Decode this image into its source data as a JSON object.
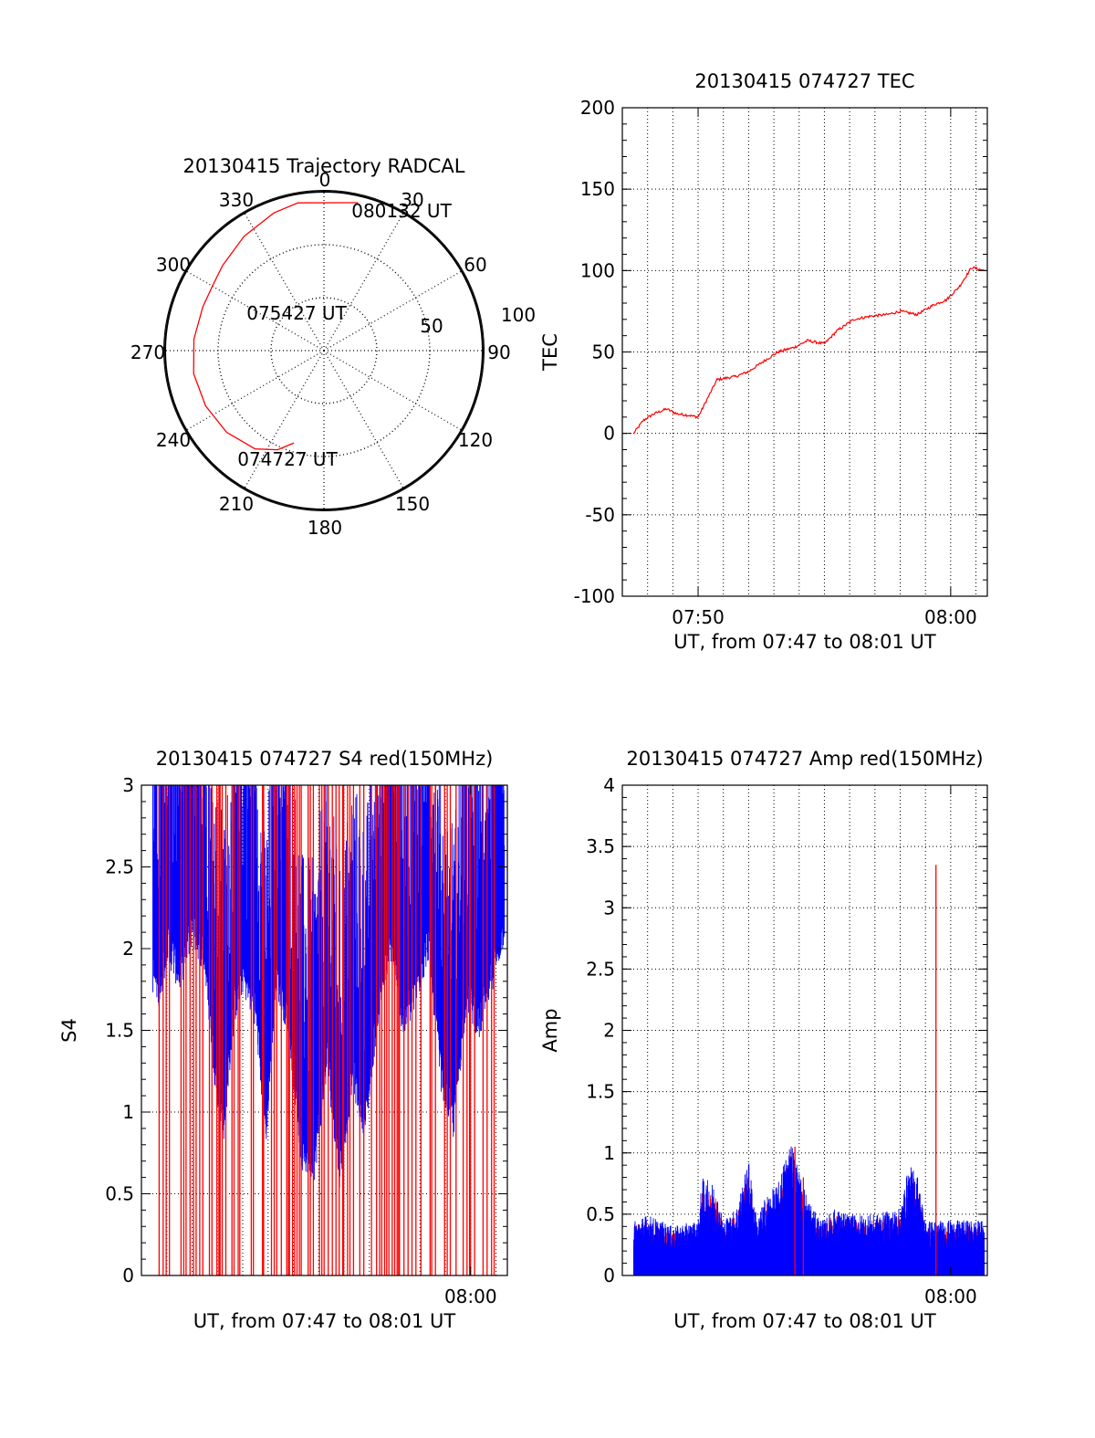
{
  "chart_data": [
    {
      "type": "polar",
      "title": "20130415 Trajectory RADCAL",
      "angle_labels": [
        "0",
        "30",
        "60",
        "90",
        "120",
        "150",
        "180",
        "210",
        "240",
        "270",
        "300",
        "330"
      ],
      "radial_labels": [
        "50",
        "100"
      ],
      "rlim": [
        0,
        100
      ],
      "grid": true,
      "series": [
        {
          "color": "#ff0000",
          "points": [
            {
              "az": 198,
              "el": 35
            },
            {
              "az": 205,
              "el": 28
            },
            {
              "az": 215,
              "el": 22
            },
            {
              "az": 230,
              "el": 18
            },
            {
              "az": 245,
              "el": 16
            },
            {
              "az": 260,
              "el": 15
            },
            {
              "az": 275,
              "el": 16
            },
            {
              "az": 290,
              "el": 17
            },
            {
              "az": 300,
              "el": 17
            },
            {
              "az": 310,
              "el": 15
            },
            {
              "az": 325,
              "el": 11
            },
            {
              "az": 340,
              "el": 7
            },
            {
              "az": 350,
              "el": 5
            },
            {
              "az": 13,
              "el": 4
            }
          ]
        }
      ],
      "annotations": [
        {
          "text": "074727 UT",
          "az": 205,
          "el": 28
        },
        {
          "text": "075427 UT",
          "az": 300,
          "el": 56
        },
        {
          "text": "080132 UT",
          "az": 20,
          "el": 9
        }
      ]
    },
    {
      "type": "line",
      "title": "20130415 074727 TEC",
      "xlabel": "UT, from 07:47 to 08:01 UT",
      "ylabel": "TEC",
      "xlim": [
        "07:47:00",
        "08:01:27"
      ],
      "ylim": [
        -100,
        200
      ],
      "yticks": [
        -100,
        -50,
        0,
        50,
        100,
        150,
        200
      ],
      "xticks": [
        {
          "at": "07:50",
          "label": "07:50"
        },
        {
          "at": "08:00",
          "label": "08:00"
        }
      ],
      "grid": true,
      "series": [
        {
          "color": "#ff0000",
          "x": [
            "07:47:27",
            "07:47:50",
            "07:48:15",
            "07:48:45",
            "07:49:10",
            "07:49:40",
            "07:50:00",
            "07:50:45",
            "07:51:30",
            "07:52:00",
            "07:52:40",
            "07:53:10",
            "07:53:50",
            "07:54:20",
            "07:55:00",
            "07:55:30",
            "07:56:10",
            "07:56:50",
            "07:57:30",
            "07:58:00",
            "07:58:40",
            "07:59:20",
            "07:59:50",
            "08:00:20",
            "08:00:50",
            "08:01:20"
          ],
          "y": [
            0,
            8,
            12,
            15,
            12,
            11,
            10,
            33,
            35,
            38,
            45,
            50,
            53,
            57,
            55,
            63,
            70,
            72,
            73,
            75,
            73,
            79,
            82,
            90,
            102,
            100
          ]
        }
      ]
    },
    {
      "type": "line",
      "title": "20130415 074727 S4 red(150MHz)",
      "xlabel": "UT, from 07:47 to 08:01 UT",
      "ylabel": "S4",
      "xlim": [
        "07:47:00",
        "08:01:27"
      ],
      "ylim": [
        0,
        3
      ],
      "yticks": [
        0,
        0.5,
        1,
        1.5,
        2,
        2.5,
        3
      ],
      "xticks": [
        {
          "at": "08:00",
          "label": "08:00"
        }
      ],
      "grid": true,
      "series": [
        {
          "color": "#0000ff",
          "envelope_x": [
            "07:47:27",
            "07:47:45",
            "07:48:00",
            "07:48:30",
            "07:49:00",
            "07:49:30",
            "07:49:55",
            "07:50:15",
            "07:50:40",
            "07:51:00",
            "07:51:30",
            "07:51:55",
            "07:52:20",
            "07:52:50",
            "07:53:20",
            "07:53:50",
            "07:54:20",
            "07:54:50",
            "07:55:20",
            "07:55:50",
            "07:56:20",
            "07:56:50",
            "07:57:20",
            "07:57:50",
            "07:58:20",
            "07:58:50",
            "07:59:20",
            "07:59:50",
            "08:00:20",
            "08:00:50",
            "08:01:20"
          ],
          "envelope_min": [
            1.8,
            1.7,
            2.0,
            1.8,
            2.1,
            1.9,
            1.2,
            0.9,
            1.6,
            1.8,
            1.6,
            0.85,
            1.8,
            1.5,
            0.7,
            0.65,
            1.3,
            0.6,
            1.2,
            0.9,
            1.6,
            2.0,
            1.5,
            1.7,
            2.0,
            1.2,
            0.9,
            1.7,
            1.5,
            1.8,
            2.1
          ]
        },
        {
          "color": "#ff0000",
          "note": "many vertical spikes from 0 to 3"
        }
      ]
    },
    {
      "type": "line",
      "title": "20130415 074727 Amp red(150MHz)",
      "xlabel": "UT, from 07:47 to 08:01 UT",
      "ylabel": "Amp",
      "xlim": [
        "07:47:00",
        "08:01:27"
      ],
      "ylim": [
        0,
        4
      ],
      "yticks": [
        0,
        0.5,
        1,
        1.5,
        2,
        2.5,
        3,
        3.5,
        4
      ],
      "xticks": [
        {
          "at": "08:00",
          "label": "08:00"
        }
      ],
      "grid": true,
      "series": [
        {
          "color": "#0000ff",
          "envelope_x": [
            "07:47:27",
            "07:48:00",
            "07:49:00",
            "07:50:00",
            "07:50:10",
            "07:50:40",
            "07:51:00",
            "07:51:30",
            "07:52:00",
            "07:52:20",
            "07:52:40",
            "07:53:10",
            "07:53:40",
            "07:54:00",
            "07:54:20",
            "07:54:40",
            "07:55:00",
            "07:55:20",
            "07:56:00",
            "07:57:00",
            "07:58:00",
            "07:58:20",
            "07:58:40",
            "07:59:00",
            "07:59:30",
            "08:00:00",
            "08:00:30",
            "08:01:20"
          ],
          "envelope_max": [
            0.45,
            0.5,
            0.4,
            0.45,
            0.8,
            0.75,
            0.45,
            0.55,
            0.95,
            0.45,
            0.65,
            0.75,
            1.15,
            0.85,
            0.65,
            0.5,
            0.45,
            0.55,
            0.5,
            0.5,
            0.55,
            0.9,
            0.85,
            0.45,
            0.45,
            0.45,
            0.45,
            0.45
          ]
        },
        {
          "color": "#ff0000",
          "spikes": [
            {
              "x": "07:53:50",
              "y": 1.05
            },
            {
              "x": "07:54:10",
              "y": 0.8
            },
            {
              "x": "07:59:25",
              "y": 3.35
            }
          ]
        }
      ]
    }
  ]
}
